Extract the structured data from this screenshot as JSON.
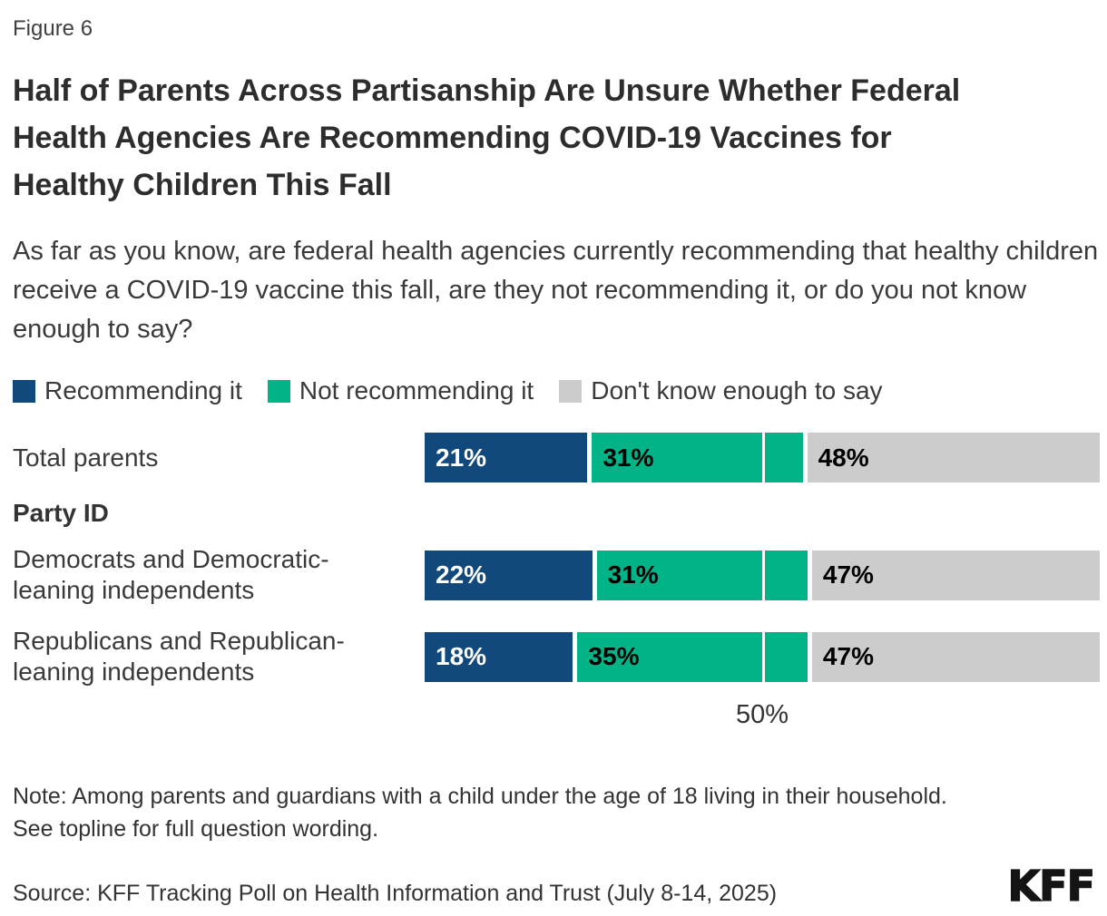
{
  "figure_label": "Figure 6",
  "title": "Half of Parents Across Partisanship Are Unsure Whether Federal Health Agencies Are Recommending COVID-19 Vaccines for Healthy Children This Fall",
  "subtitle": "As far as you know, are federal health agencies currently recommending that healthy children receive a COVID-19 vaccine this fall, are they not recommending it, or do you not know enough to say?",
  "colors": {
    "recommending": "#11497C",
    "not_recommending": "#00B487",
    "dont_know": "#CCCCCC",
    "label_on_blue": "#FFFFFF",
    "label_on_light": "#000000"
  },
  "legend": [
    {
      "label": "Recommending it",
      "color": "#11497C"
    },
    {
      "label": "Not recommending it",
      "color": "#00B487"
    },
    {
      "label": "Don't know enough to say",
      "color": "#CCCCCC"
    }
  ],
  "section_header": "Party ID",
  "axis_tick_label": "50%",
  "chart_data": {
    "type": "bar",
    "stacked": true,
    "orientation": "horizontal",
    "title": "Half of Parents Across Partisanship Are Unsure Whether Federal Health Agencies Are Recommending COVID-19 Vaccines for Healthy Children This Fall",
    "categories": [
      "Total parents",
      "Democrats and Democratic-leaning independents",
      "Republicans and Republican-leaning independents"
    ],
    "series": [
      {
        "name": "Recommending it",
        "color": "#11497C",
        "values": [
          21,
          22,
          18
        ]
      },
      {
        "name": "Not recommending it",
        "color": "#00B487",
        "values": [
          31,
          31,
          35
        ]
      },
      {
        "name": "Don't know enough to say",
        "color": "#CCCCCC",
        "values": [
          48,
          47,
          47
        ]
      }
    ],
    "xlim": [
      0,
      100
    ],
    "x_ticks": [
      {
        "value": 50,
        "label": "50%"
      }
    ],
    "legend_position": "top",
    "data_labels": true
  },
  "rows": [
    {
      "label_lines": [
        "Total parents",
        ""
      ],
      "segments": [
        {
          "name": "Recommending it",
          "value": 21,
          "label": "21%",
          "color": "#11497C",
          "text_color": "#FFFFFF"
        },
        {
          "name": "Not recommending it",
          "value": 31,
          "label": "31%",
          "color": "#00B487",
          "text_color": "#000000"
        },
        {
          "name": "Don't know enough to say",
          "value": 48,
          "label": "48%",
          "color": "#CCCCCC",
          "text_color": "#000000"
        }
      ]
    },
    {
      "label_lines": [
        "Democrats and Democratic-",
        "leaning independents"
      ],
      "segments": [
        {
          "name": "Recommending it",
          "value": 22,
          "label": "22%",
          "color": "#11497C",
          "text_color": "#FFFFFF"
        },
        {
          "name": "Not recommending it",
          "value": 31,
          "label": "31%",
          "color": "#00B487",
          "text_color": "#000000"
        },
        {
          "name": "Don't know enough to say",
          "value": 47,
          "label": "47%",
          "color": "#CCCCCC",
          "text_color": "#000000"
        }
      ]
    },
    {
      "label_lines": [
        "Republicans and Republican-",
        "leaning independents"
      ],
      "segments": [
        {
          "name": "Recommending it",
          "value": 18,
          "label": "18%",
          "color": "#11497C",
          "text_color": "#FFFFFF"
        },
        {
          "name": "Not recommending it",
          "value": 35,
          "label": "35%",
          "color": "#00B487",
          "text_color": "#000000"
        },
        {
          "name": "Don't know enough to say",
          "value": 47,
          "label": "47%",
          "color": "#CCCCCC",
          "text_color": "#000000"
        }
      ]
    }
  ],
  "notes": {
    "line1": "Note: Among parents and guardians with a child under the age of 18 living in their household.",
    "line2": "See topline for full question wording."
  },
  "source": "Source: KFF Tracking Poll on Health Information and Trust (July 8-14, 2025)",
  "logo_text": "KFF"
}
